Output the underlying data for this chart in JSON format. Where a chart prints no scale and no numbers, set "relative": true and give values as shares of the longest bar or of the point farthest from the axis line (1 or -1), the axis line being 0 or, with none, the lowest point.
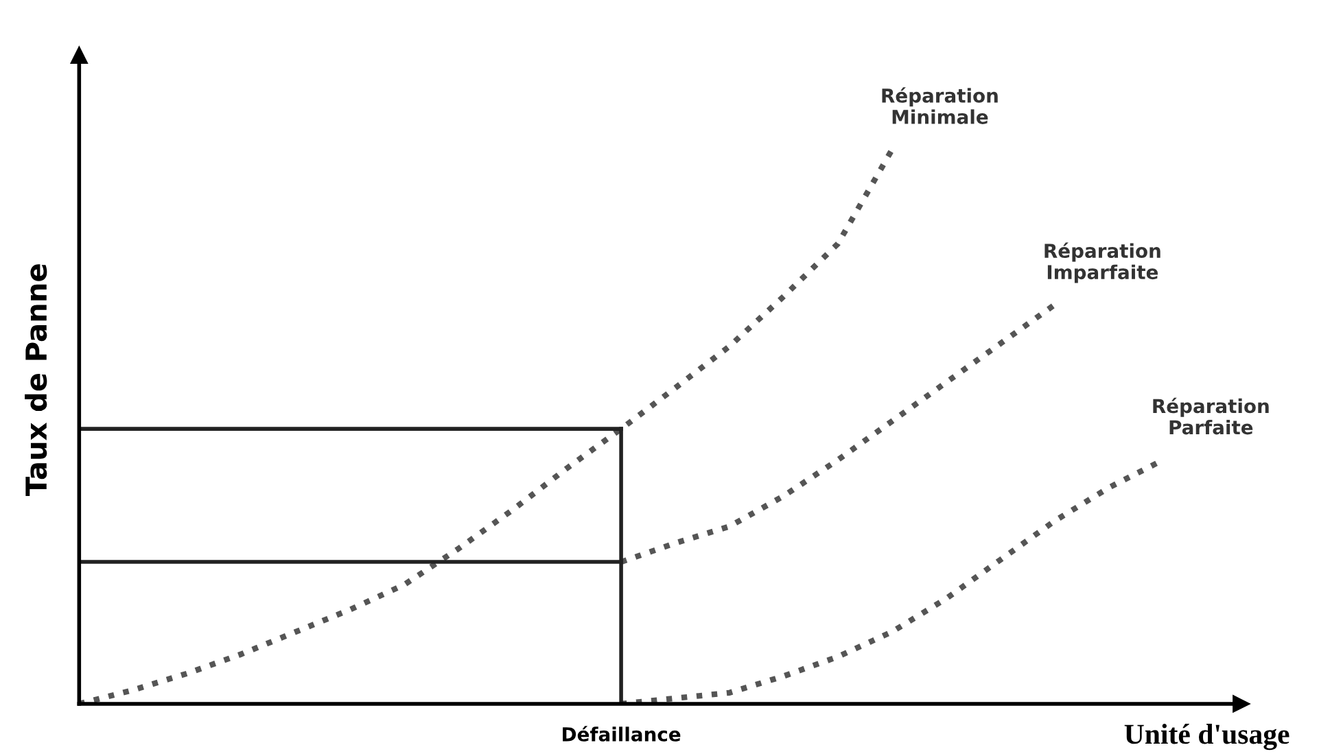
{
  "chart_data": {
    "type": "line",
    "relative": true,
    "xlabel": "Unité d'usage",
    "ylabel": "Taux de Panne",
    "legend": false,
    "categories": [
      null,
      null,
      null,
      null,
      null,
      null,
      null,
      null,
      null,
      null,
      null,
      null,
      null,
      null,
      null,
      null,
      null,
      null,
      null,
      null,
      null
    ],
    "series": [
      {
        "name": "Réparation\nMinimale",
        "color": "#555555",
        "line_style": "dotted",
        "values": [
          0,
          0.025,
          0.055,
          0.09,
          0.13,
          0.17,
          0.215,
          0.28,
          0.35,
          0.425,
          0.496,
          0.57,
          0.645,
          0.735,
          0.83,
          1,
          null,
          null,
          null,
          null,
          null
        ]
      },
      {
        "name": "Réparation\nImparfaite",
        "color": "#555555",
        "line_style": "dotted",
        "values": [
          null,
          null,
          null,
          null,
          null,
          null,
          null,
          null,
          null,
          null,
          0.256,
          0.29,
          0.32,
          0.375,
          0.44,
          0.51,
          0.58,
          0.65,
          0.72,
          null,
          null
        ]
      },
      {
        "name": "Réparation\nParfaite",
        "color": "#555555",
        "line_style": "dotted",
        "values": [
          null,
          null,
          null,
          null,
          null,
          null,
          null,
          null,
          null,
          null,
          0,
          0.01,
          0.02,
          0.05,
          0.085,
          0.13,
          0.19,
          0.26,
          0.33,
          0.39,
          0.44
        ]
      }
    ],
    "ref_lines": [
      {
        "axis": "y",
        "value": 0.496,
        "color": "#222222",
        "line_style": "solid"
      },
      {
        "axis": "y",
        "value": 0.256,
        "color": "#222222",
        "line_style": "solid"
      }
    ],
    "annotations": [
      "Défaillance"
    ]
  }
}
